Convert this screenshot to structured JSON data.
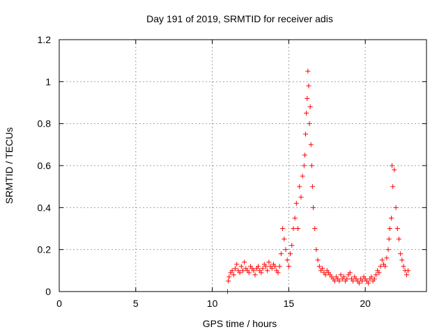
{
  "chart_data": {
    "type": "scatter",
    "title": "Day 191 of 2019, SRMTID for receiver adis",
    "xlabel": "GPS time / hours",
    "ylabel": "SRMTID / TECUs",
    "xlim": [
      0,
      24
    ],
    "ylim": [
      0,
      1.2
    ],
    "xticks": [
      0,
      5,
      10,
      15,
      20
    ],
    "xtick_labels": [
      "0",
      "5",
      "10",
      "15",
      "20"
    ],
    "yticks": [
      0,
      0.2,
      0.4,
      0.6,
      0.8,
      1.0,
      1.2
    ],
    "ytick_labels": [
      "0",
      "0.2",
      "0.4",
      "0.6",
      "0.8",
      "1",
      "1.2"
    ],
    "grid": true,
    "marker": "+",
    "color": "#ff0000",
    "series": [
      {
        "name": "SRMTID",
        "x": [
          11.0,
          11.05,
          11.1,
          11.2,
          11.3,
          11.4,
          11.5,
          11.6,
          11.7,
          11.8,
          11.9,
          12.0,
          12.1,
          12.2,
          12.3,
          12.4,
          12.5,
          12.6,
          12.7,
          12.8,
          12.9,
          13.0,
          13.1,
          13.2,
          13.3,
          13.4,
          13.5,
          13.6,
          13.7,
          13.8,
          13.9,
          14.0,
          14.1,
          14.2,
          14.3,
          14.4,
          14.5,
          14.6,
          14.7,
          14.8,
          14.9,
          15.0,
          15.1,
          15.2,
          15.3,
          15.4,
          15.5,
          15.6,
          15.7,
          15.8,
          15.9,
          16.0,
          16.05,
          16.1,
          16.15,
          16.2,
          16.25,
          16.3,
          16.35,
          16.4,
          16.45,
          16.5,
          16.55,
          16.6,
          16.7,
          16.8,
          16.9,
          17.0,
          17.1,
          17.2,
          17.3,
          17.4,
          17.5,
          17.6,
          17.7,
          17.8,
          17.9,
          18.0,
          18.1,
          18.2,
          18.3,
          18.4,
          18.5,
          18.6,
          18.7,
          18.8,
          18.9,
          19.0,
          19.1,
          19.2,
          19.3,
          19.4,
          19.5,
          19.6,
          19.7,
          19.8,
          19.9,
          20.0,
          20.1,
          20.2,
          20.3,
          20.4,
          20.5,
          20.6,
          20.7,
          20.8,
          20.9,
          21.0,
          21.1,
          21.2,
          21.3,
          21.4,
          21.5,
          21.55,
          21.6,
          21.7,
          21.75,
          21.8,
          21.9,
          22.0,
          22.1,
          22.2,
          22.3,
          22.4,
          22.5,
          22.6,
          22.7,
          22.8
        ],
        "y": [
          0.0,
          0.05,
          0.07,
          0.09,
          0.1,
          0.08,
          0.11,
          0.13,
          0.1,
          0.09,
          0.12,
          0.1,
          0.14,
          0.11,
          0.1,
          0.09,
          0.12,
          0.11,
          0.1,
          0.08,
          0.11,
          0.12,
          0.1,
          0.09,
          0.11,
          0.13,
          0.12,
          0.1,
          0.14,
          0.12,
          0.11,
          0.13,
          0.12,
          0.1,
          0.09,
          0.12,
          0.18,
          0.3,
          0.25,
          0.2,
          0.15,
          0.12,
          0.18,
          0.22,
          0.3,
          0.35,
          0.42,
          0.3,
          0.5,
          0.45,
          0.55,
          0.6,
          0.65,
          0.75,
          0.85,
          0.92,
          1.05,
          0.98,
          0.8,
          0.88,
          0.7,
          0.6,
          0.5,
          0.4,
          0.3,
          0.2,
          0.15,
          0.12,
          0.1,
          0.11,
          0.09,
          0.08,
          0.1,
          0.09,
          0.08,
          0.07,
          0.06,
          0.05,
          0.07,
          0.06,
          0.05,
          0.08,
          0.06,
          0.07,
          0.05,
          0.06,
          0.08,
          0.09,
          0.06,
          0.05,
          0.07,
          0.06,
          0.05,
          0.04,
          0.06,
          0.05,
          0.07,
          0.06,
          0.05,
          0.04,
          0.06,
          0.07,
          0.05,
          0.06,
          0.08,
          0.1,
          0.09,
          0.12,
          0.15,
          0.13,
          0.12,
          0.16,
          0.2,
          0.25,
          0.3,
          0.35,
          0.6,
          0.5,
          0.58,
          0.4,
          0.3,
          0.25,
          0.18,
          0.15,
          0.12,
          0.1,
          0.08,
          0.1
        ]
      }
    ]
  }
}
